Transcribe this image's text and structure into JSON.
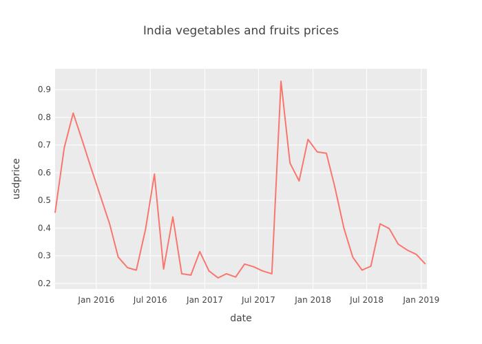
{
  "chart_data": {
    "type": "line",
    "title": "India vegetables and fruits prices",
    "xlabel": "date",
    "ylabel": "usdprice",
    "x_ticks": [
      "Jan 2016",
      "Jul 2016",
      "Jan 2017",
      "Jul 2017",
      "Jan 2018",
      "Jul 2018",
      "Jan 2019"
    ],
    "y_ticks": [
      "0.2",
      "0.3",
      "0.4",
      "0.5",
      "0.6",
      "0.7",
      "0.8",
      "0.9"
    ],
    "xlim": [
      "2015-08-15",
      "2019-01-20"
    ],
    "ylim": [
      0.18,
      0.975
    ],
    "grid": true,
    "colors": {
      "plot_bg": "#ebebeb",
      "grid": "#ffffff",
      "line": "#f8766d"
    },
    "series": [
      {
        "x": [
          "2015-08-15",
          "2015-09-15",
          "2015-10-15",
          "2015-11-15",
          "2015-12-15",
          "2016-01-15",
          "2016-02-15",
          "2016-03-15",
          "2016-04-15",
          "2016-05-15",
          "2016-06-15",
          "2016-07-15",
          "2016-08-15",
          "2016-09-15",
          "2016-10-15",
          "2016-11-15",
          "2016-12-15",
          "2017-01-15",
          "2017-02-15",
          "2017-03-15",
          "2017-04-15",
          "2017-05-15",
          "2017-06-15",
          "2017-07-15",
          "2017-08-15",
          "2017-09-15",
          "2017-10-15",
          "2017-11-15",
          "2017-12-15",
          "2018-01-15",
          "2018-02-15",
          "2018-03-15",
          "2018-04-15",
          "2018-05-15",
          "2018-06-15",
          "2018-07-15",
          "2018-08-15",
          "2018-09-15",
          "2018-10-15",
          "2018-11-15",
          "2018-12-15",
          "2019-01-15"
        ],
        "y": [
          0.455,
          0.69,
          0.815,
          0.715,
          0.615,
          0.515,
          0.415,
          0.295,
          0.257,
          0.248,
          0.395,
          0.595,
          0.252,
          0.44,
          0.235,
          0.23,
          0.315,
          0.245,
          0.22,
          0.235,
          0.223,
          0.27,
          0.26,
          0.245,
          0.235,
          0.93,
          0.635,
          0.57,
          0.72,
          0.675,
          0.67,
          0.55,
          0.4,
          0.295,
          0.248,
          0.262,
          0.415,
          0.398,
          0.342,
          0.32,
          0.305,
          0.27
        ]
      }
    ]
  }
}
